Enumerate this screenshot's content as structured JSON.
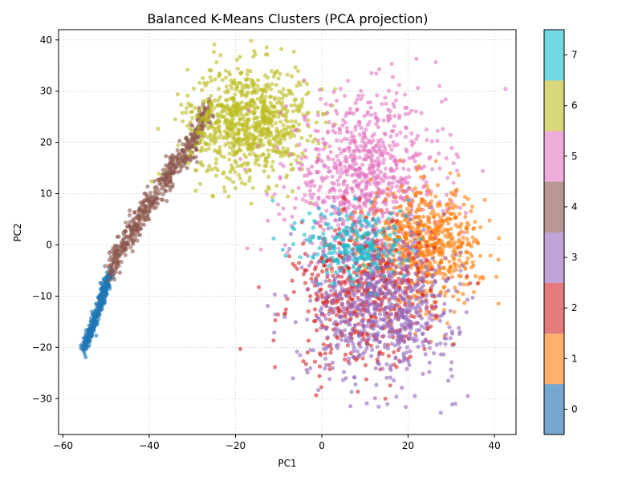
{
  "chart_data": {
    "type": "scatter",
    "title": "Balanced K-Means Clusters (PCA projection)",
    "xlabel": "PC1",
    "ylabel": "PC2",
    "xlim": [
      -61,
      45
    ],
    "ylim": [
      -37,
      42
    ],
    "xticks": [
      -60,
      -40,
      -20,
      0,
      20,
      40
    ],
    "yticks": [
      -30,
      -20,
      -10,
      0,
      10,
      20,
      30,
      40
    ],
    "xtick_labels": [
      "−60",
      "−40",
      "−20",
      "0",
      "20",
      "40"
    ],
    "ytick_labels": [
      "−30",
      "−20",
      "−10",
      "0",
      "10",
      "20",
      "30",
      "40"
    ],
    "grid": true,
    "marker_alpha": 0.6,
    "colorbar": {
      "range": [
        -0.5,
        7.5
      ],
      "ticks": [
        0,
        1,
        2,
        3,
        4,
        5,
        6,
        7
      ],
      "tick_labels": [
        "0",
        "1",
        "2",
        "3",
        "4",
        "5",
        "6",
        "7"
      ]
    },
    "clusters": [
      {
        "label": "0",
        "color": "#1f77b4",
        "band_color": "#76a8cf",
        "shape": "band",
        "path": [
          [
            -55.5,
            -20.5
          ],
          [
            -53.5,
            -17
          ],
          [
            -52,
            -13
          ],
          [
            -50.5,
            -9
          ],
          [
            -49,
            -5.5
          ]
        ],
        "spread": 0.7,
        "count": 320
      },
      {
        "label": "1",
        "color": "#ff7f0e",
        "band_color": "#ffb06c",
        "shape": "blob",
        "center": [
          24,
          0
        ],
        "sd": [
          6.5,
          5.5
        ],
        "count": 650
      },
      {
        "label": "2",
        "color": "#d62728",
        "band_color": "#e57b7c",
        "shape": "blob",
        "center": [
          10,
          -10
        ],
        "sd": [
          8,
          7
        ],
        "count": 550
      },
      {
        "label": "3",
        "color": "#9467bd",
        "band_color": "#bea4d7",
        "shape": "blob",
        "center": [
          14,
          -12
        ],
        "sd": [
          8.5,
          7
        ],
        "count": 700
      },
      {
        "label": "4",
        "color": "#8c564b",
        "band_color": "#b99893",
        "shape": "band",
        "path": [
          [
            -49,
            -5
          ],
          [
            -45,
            2
          ],
          [
            -40,
            8
          ],
          [
            -35,
            14
          ],
          [
            -30,
            20
          ],
          [
            -26,
            27
          ]
        ],
        "spread": 1.3,
        "count": 520
      },
      {
        "label": "5",
        "color": "#e377c2",
        "band_color": "#eeaddb",
        "shape": "blob",
        "center": [
          10,
          13
        ],
        "sd": [
          9,
          8
        ],
        "count": 850
      },
      {
        "label": "6",
        "color": "#bcbd22",
        "band_color": "#d8d878",
        "shape": "blob",
        "center": [
          -17,
          24
        ],
        "sd": [
          7,
          5.5
        ],
        "count": 850
      },
      {
        "label": "7",
        "color": "#17becf",
        "band_color": "#72d8e3",
        "shape": "blob",
        "center": [
          8,
          0
        ],
        "sd": [
          6,
          4
        ],
        "count": 250
      }
    ]
  }
}
